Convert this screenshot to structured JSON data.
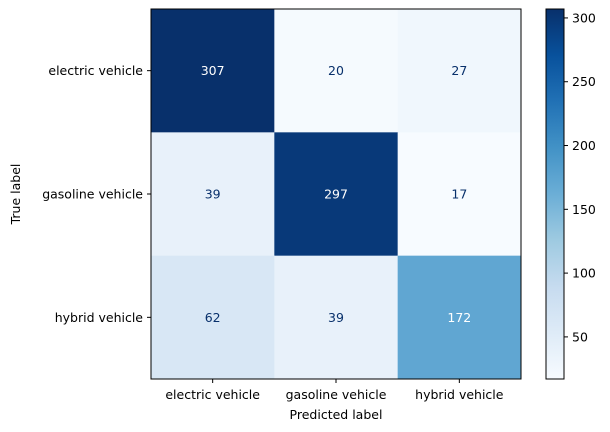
{
  "chart_data": {
    "type": "heatmap",
    "title": "",
    "xlabel": "Predicted label",
    "ylabel": "True label",
    "x_categories": [
      "electric vehicle",
      "gasoline vehicle",
      "hybrid vehicle"
    ],
    "y_categories": [
      "electric vehicle",
      "gasoline vehicle",
      "hybrid vehicle"
    ],
    "values": [
      [
        307,
        20,
        27
      ],
      [
        39,
        297,
        17
      ],
      [
        62,
        39,
        172
      ]
    ],
    "colormap": "Blues",
    "colorbar": {
      "min": 17,
      "max": 307,
      "ticks": [
        50,
        100,
        150,
        200,
        250,
        300
      ]
    },
    "colors": {
      "text_on_dark": "#ffffff",
      "text_on_light": "#08306b"
    }
  }
}
